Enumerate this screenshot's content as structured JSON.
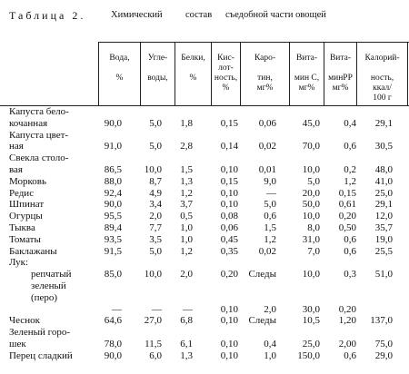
{
  "caption": {
    "label": "Таблица 2.",
    "words": [
      "Химический",
      "состав",
      "съедобной части овощей"
    ]
  },
  "columns": [
    "Вода,\n\n%",
    "Угле-\n\nводы,",
    "Белки,\n\n%",
    "Кис-\nлот-\nность,\n%",
    "Каро-\n\nтин,\nмг%",
    "Вита-\n\nмин С,\nмг%",
    "Вита-\n\nминРР\nмг%",
    "Калорий-\n\nность,\nккал/\n100 г"
  ],
  "rows": [
    {
      "name": "Капуста бело-",
      "vals": []
    },
    {
      "name": "кочанная",
      "vals": [
        "90,0",
        "5,0",
        "1,8",
        "0,15",
        "0,06",
        "45,0",
        "0,4",
        "29,1"
      ]
    },
    {
      "name": "Капуста цвет-",
      "vals": []
    },
    {
      "name": "ная",
      "vals": [
        "91,0",
        "5,0",
        "2,8",
        "0,14",
        "0,02",
        "70,0",
        "0,6",
        "30,5"
      ]
    },
    {
      "name": "Свекла столо-",
      "vals": []
    },
    {
      "name": "вая",
      "vals": [
        "86,5",
        "10,0",
        "1,5",
        "0,10",
        "0,01",
        "10,0",
        "0,2",
        "48,0"
      ]
    },
    {
      "name": "Морковь",
      "vals": [
        "88,0",
        "8,7",
        "1,3",
        "0,15",
        "9,0",
        "5,0",
        "1,2",
        "41,0"
      ]
    },
    {
      "name": "Редис",
      "vals": [
        "92,4",
        "4,9",
        "1,2",
        "0,10",
        "—",
        "20,0",
        "0,15",
        "25,0"
      ]
    },
    {
      "name": "Шпинат",
      "vals": [
        "90,0",
        "3,4",
        "3,7",
        "0,10",
        "5,0",
        "50,0",
        "0,61",
        "29,1"
      ]
    },
    {
      "name": "Огурцы",
      "vals": [
        "95,5",
        "2,0",
        "0,5",
        "0,08",
        "0,6",
        "10,0",
        "0,20",
        "12,0"
      ]
    },
    {
      "name": "Тыква",
      "vals": [
        "89,4",
        "7,7",
        "1,0",
        "0,06",
        "1,5",
        "8,0",
        "0,50",
        "35,7"
      ]
    },
    {
      "name": "Томаты",
      "vals": [
        "93,5",
        "3,5",
        "1,0",
        "0,45",
        "1,2",
        "31,0",
        "0,6",
        "19,0"
      ]
    },
    {
      "name": "Баклажаны",
      "vals": [
        "91,5",
        "5,0",
        "1,2",
        "0,35",
        "0,02",
        "7,0",
        "0,6",
        "25,5"
      ]
    },
    {
      "name": "Лук:",
      "vals": []
    },
    {
      "name": "репчатый",
      "indent": true,
      "vals": [
        "85,0",
        "10,0",
        "2,0",
        "0,20",
        "Следы",
        "10,0",
        "0,3",
        "51,0"
      ]
    },
    {
      "name": "зеленый",
      "indent": true,
      "vals": []
    },
    {
      "name": "(перо)",
      "indent": true,
      "vals": []
    },
    {
      "name": "",
      "vals": [
        "—",
        "—",
        "—",
        "0,10",
        "2,0",
        "30,0",
        "0,20",
        ""
      ]
    },
    {
      "name": "Чеснок",
      "vals": [
        "64,6",
        "27,0",
        "6,8",
        "0,10",
        "Следы",
        "10,5",
        "1,20",
        "137,0"
      ]
    },
    {
      "name": "Зеленый горо-",
      "vals": []
    },
    {
      "name": "шек",
      "vals": [
        "78,0",
        "11,5",
        "6,1",
        "0,10",
        "0,4",
        "25,0",
        "2,00",
        "75,0"
      ]
    },
    {
      "name": "Перец сладкий",
      "vals": [
        "90,0",
        "6,0",
        "1,3",
        "0,10",
        "1,0",
        "150,0",
        "0,6",
        "29,0"
      ]
    }
  ]
}
